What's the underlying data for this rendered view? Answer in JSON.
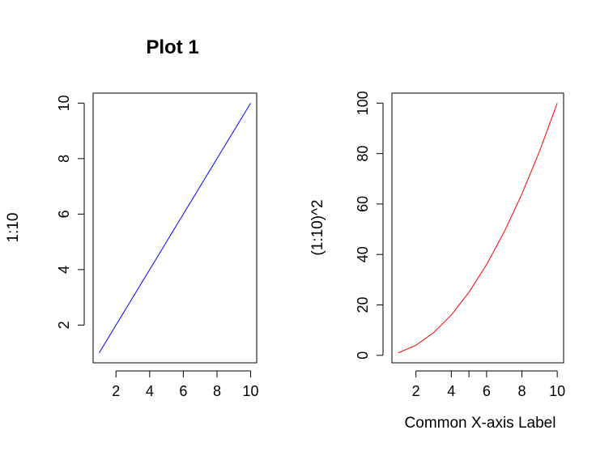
{
  "chart_data": [
    {
      "type": "line",
      "title": "Plot 1",
      "xlabel": "",
      "ylabel": "1:10",
      "x": [
        1,
        2,
        3,
        4,
        5,
        6,
        7,
        8,
        9,
        10
      ],
      "series": [
        {
          "values": [
            1,
            2,
            3,
            4,
            5,
            6,
            7,
            8,
            9,
            10
          ],
          "color": "#0000ff"
        }
      ],
      "xlim": [
        0.64,
        10.36
      ],
      "ylim": [
        0.64,
        10.36
      ],
      "xticks": [
        2,
        4,
        6,
        8,
        10
      ],
      "yticks": [
        2,
        4,
        6,
        8,
        10
      ],
      "grid": false
    },
    {
      "type": "line",
      "title": "",
      "xlabel": "Common X-axis Label",
      "ylabel": "(1:10)^2",
      "x": [
        1,
        2,
        3,
        4,
        5,
        6,
        7,
        8,
        9,
        10
      ],
      "series": [
        {
          "values": [
            1,
            4,
            9,
            16,
            25,
            36,
            49,
            64,
            81,
            100
          ],
          "color": "#ff0000"
        }
      ],
      "xlim": [
        0.64,
        10.36
      ],
      "ylim": [
        -2.96,
        103.96
      ],
      "xticks": [
        2,
        4,
        5,
        6,
        8,
        10
      ],
      "xtick_labels": [
        "2",
        "4",
        "",
        "6",
        "8",
        "10"
      ],
      "yticks": [
        0,
        20,
        40,
        60,
        80,
        100
      ],
      "grid": false
    }
  ]
}
